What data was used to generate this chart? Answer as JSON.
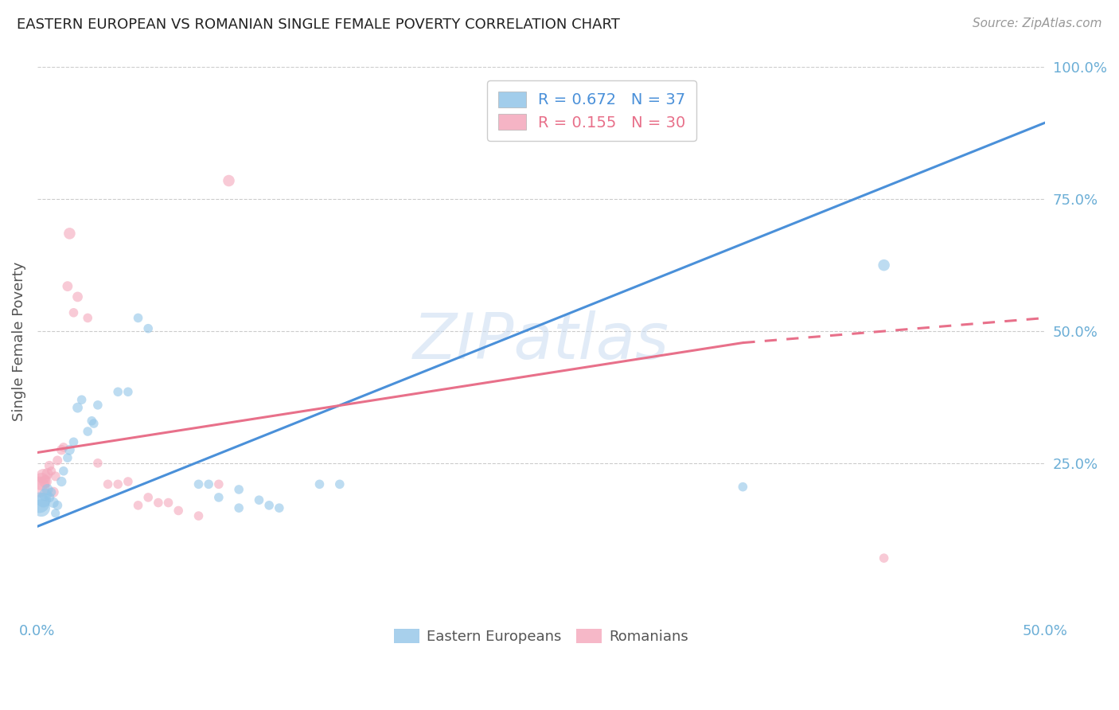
{
  "title": "EASTERN EUROPEAN VS ROMANIAN SINGLE FEMALE POVERTY CORRELATION CHART",
  "source": "Source: ZipAtlas.com",
  "ylabel": "Single Female Poverty",
  "xlim": [
    0.0,
    0.5
  ],
  "ylim": [
    -0.04,
    1.0
  ],
  "legend_blue_r": "0.672",
  "legend_blue_n": "37",
  "legend_pink_r": "0.155",
  "legend_pink_n": "30",
  "blue_color": "#92c5e8",
  "pink_color": "#f4a7bb",
  "blue_line_color": "#4a90d9",
  "pink_line_color": "#e8708a",
  "watermark": "ZIPatlas",
  "axis_label_color": "#6baed6",
  "blue_scatter": [
    [
      0.001,
      0.175
    ],
    [
      0.002,
      0.165
    ],
    [
      0.003,
      0.18
    ],
    [
      0.004,
      0.19
    ],
    [
      0.005,
      0.2
    ],
    [
      0.006,
      0.185
    ],
    [
      0.007,
      0.195
    ],
    [
      0.008,
      0.175
    ],
    [
      0.009,
      0.155
    ],
    [
      0.01,
      0.17
    ],
    [
      0.012,
      0.215
    ],
    [
      0.013,
      0.235
    ],
    [
      0.015,
      0.26
    ],
    [
      0.016,
      0.275
    ],
    [
      0.018,
      0.29
    ],
    [
      0.02,
      0.355
    ],
    [
      0.022,
      0.37
    ],
    [
      0.025,
      0.31
    ],
    [
      0.027,
      0.33
    ],
    [
      0.028,
      0.325
    ],
    [
      0.03,
      0.36
    ],
    [
      0.04,
      0.385
    ],
    [
      0.045,
      0.385
    ],
    [
      0.05,
      0.525
    ],
    [
      0.055,
      0.505
    ],
    [
      0.08,
      0.21
    ],
    [
      0.085,
      0.21
    ],
    [
      0.09,
      0.185
    ],
    [
      0.1,
      0.2
    ],
    [
      0.1,
      0.165
    ],
    [
      0.11,
      0.18
    ],
    [
      0.115,
      0.17
    ],
    [
      0.12,
      0.165
    ],
    [
      0.14,
      0.21
    ],
    [
      0.15,
      0.21
    ],
    [
      0.35,
      0.205
    ],
    [
      0.42,
      0.625
    ]
  ],
  "pink_scatter": [
    [
      0.001,
      0.205
    ],
    [
      0.002,
      0.215
    ],
    [
      0.003,
      0.225
    ],
    [
      0.004,
      0.215
    ],
    [
      0.005,
      0.23
    ],
    [
      0.006,
      0.245
    ],
    [
      0.007,
      0.235
    ],
    [
      0.008,
      0.195
    ],
    [
      0.009,
      0.225
    ],
    [
      0.01,
      0.255
    ],
    [
      0.012,
      0.275
    ],
    [
      0.013,
      0.28
    ],
    [
      0.015,
      0.585
    ],
    [
      0.016,
      0.685
    ],
    [
      0.018,
      0.535
    ],
    [
      0.02,
      0.565
    ],
    [
      0.025,
      0.525
    ],
    [
      0.03,
      0.25
    ],
    [
      0.035,
      0.21
    ],
    [
      0.04,
      0.21
    ],
    [
      0.045,
      0.215
    ],
    [
      0.05,
      0.17
    ],
    [
      0.055,
      0.185
    ],
    [
      0.06,
      0.175
    ],
    [
      0.065,
      0.175
    ],
    [
      0.07,
      0.16
    ],
    [
      0.08,
      0.15
    ],
    [
      0.09,
      0.21
    ],
    [
      0.095,
      0.785
    ],
    [
      0.42,
      0.07
    ]
  ],
  "blue_sizes": [
    350,
    250,
    180,
    130,
    100,
    80,
    65,
    90,
    65,
    75,
    80,
    70,
    70,
    85,
    70,
    85,
    70,
    70,
    70,
    70,
    70,
    70,
    70,
    70,
    70,
    70,
    70,
    70,
    70,
    70,
    70,
    70,
    70,
    70,
    70,
    70,
    110
  ],
  "pink_sizes": [
    350,
    250,
    180,
    130,
    100,
    80,
    65,
    90,
    75,
    75,
    80,
    70,
    85,
    110,
    70,
    85,
    70,
    70,
    70,
    70,
    70,
    70,
    70,
    70,
    70,
    70,
    70,
    70,
    110,
    70
  ],
  "blue_trendline": [
    [
      0.0,
      0.13
    ],
    [
      0.5,
      0.895
    ]
  ],
  "pink_trendline_solid": [
    [
      0.0,
      0.27
    ],
    [
      0.35,
      0.478
    ]
  ],
  "pink_trendline_dashed": [
    [
      0.35,
      0.478
    ],
    [
      0.5,
      0.525
    ]
  ]
}
